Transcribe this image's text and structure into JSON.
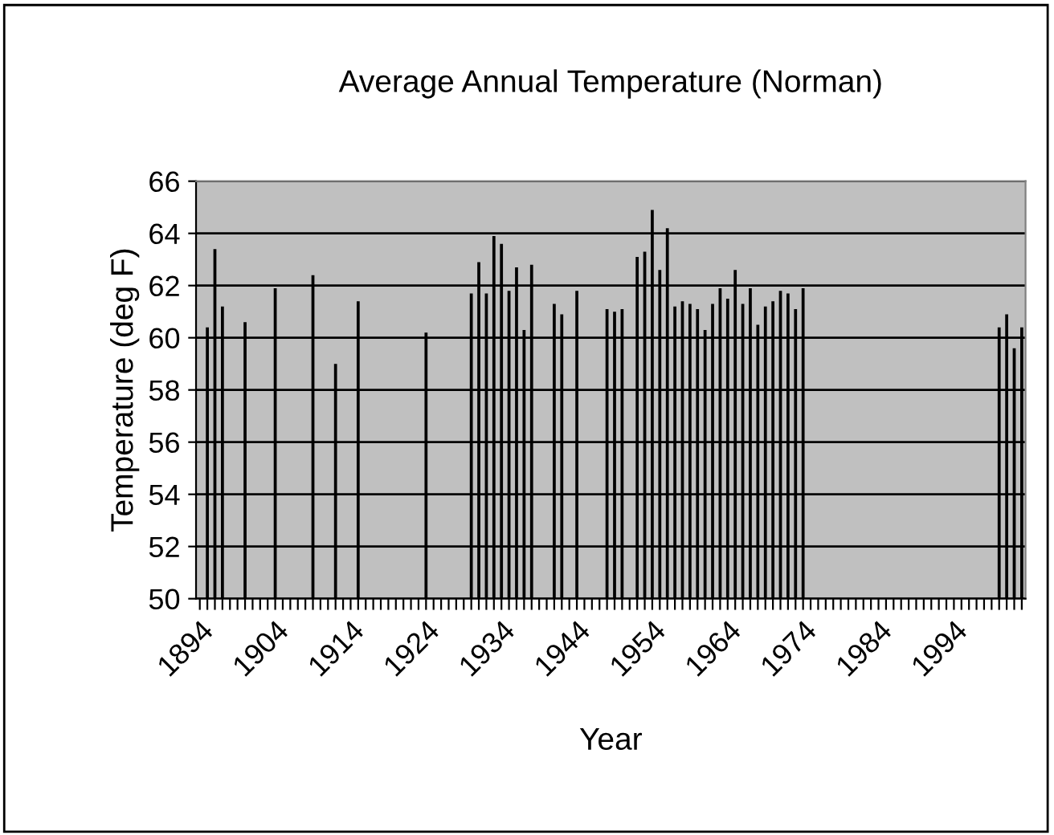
{
  "chart_data": {
    "type": "bar",
    "title": "Average Annual Temperature (Norman)",
    "xlabel": "Year",
    "ylabel": "Temperature (deg F)",
    "categories": [
      "1894",
      null,
      null,
      null,
      null,
      null,
      null,
      null,
      null,
      null,
      "1904",
      null,
      null,
      null,
      null,
      null,
      null,
      null,
      null,
      null,
      "1914",
      null,
      null,
      null,
      null,
      null,
      null,
      null,
      null,
      null,
      "1924",
      null,
      null,
      null,
      null,
      null,
      null,
      null,
      null,
      null,
      "1934",
      null,
      null,
      null,
      null,
      null,
      null,
      null,
      null,
      null,
      "1944",
      null,
      null,
      null,
      null,
      null,
      null,
      null,
      null,
      null,
      "1954",
      null,
      null,
      null,
      null,
      null,
      null,
      null,
      null,
      null,
      "1964",
      null,
      null,
      null,
      null,
      null,
      null,
      null,
      null,
      null,
      "1974",
      null,
      null,
      null,
      null,
      null,
      null,
      null,
      null,
      null,
      "1984",
      null,
      null,
      null,
      null,
      null,
      null,
      null,
      null,
      null,
      "1994",
      null,
      null,
      null,
      null,
      null,
      null,
      null,
      null,
      null
    ],
    "values": [
      null,
      60.4,
      63.4,
      61.2,
      null,
      null,
      60.6,
      null,
      null,
      null,
      61.9,
      null,
      null,
      null,
      null,
      62.4,
      null,
      null,
      59.0,
      null,
      null,
      61.4,
      null,
      null,
      null,
      null,
      null,
      null,
      null,
      null,
      60.2,
      null,
      null,
      null,
      null,
      null,
      61.7,
      62.9,
      61.7,
      63.9,
      63.6,
      61.8,
      62.7,
      60.3,
      62.8,
      null,
      null,
      61.3,
      60.9,
      null,
      61.8,
      null,
      null,
      null,
      61.1,
      61.0,
      61.1,
      null,
      63.1,
      63.3,
      64.9,
      62.6,
      64.2,
      61.2,
      61.4,
      61.3,
      61.1,
      60.3,
      61.3,
      61.9,
      61.5,
      62.6,
      61.3,
      61.9,
      60.5,
      61.2,
      61.4,
      61.8,
      61.7,
      61.1,
      61.9,
      null,
      null,
      null,
      null,
      null,
      null,
      null,
      null,
      null,
      null,
      null,
      null,
      null,
      null,
      null,
      null,
      null,
      null,
      null,
      null,
      null,
      null,
      null,
      null,
      null,
      60.4,
      60.9,
      59.6,
      60.4
    ],
    "color": "#000000",
    "ylim": [
      50,
      66
    ],
    "yticks": [
      50,
      52,
      54,
      56,
      58,
      60,
      62,
      64,
      66
    ],
    "grid": "y",
    "legend": false
  }
}
